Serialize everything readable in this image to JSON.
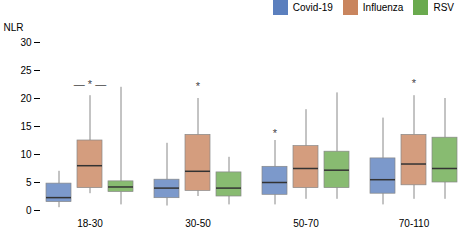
{
  "chart_data": {
    "type": "box",
    "categories": [
      "18-30",
      "30-50",
      "50-70",
      "70-110"
    ],
    "ylabel": "NLR",
    "ylim": [
      0,
      30
    ],
    "yticks": [
      0,
      5,
      10,
      15,
      20,
      25,
      30
    ],
    "legend": "upper right",
    "series": [
      {
        "name": "Covid-19",
        "color": "#5b7fbe",
        "values": [
          {
            "whislo": 0.5,
            "q1": 1.5,
            "med": 2.3,
            "q3": 4.8,
            "whishi": 7.0
          },
          {
            "whislo": 0.8,
            "q1": 2.2,
            "med": 4.0,
            "q3": 5.5,
            "whishi": 12.0
          },
          {
            "whislo": 1.0,
            "q1": 2.8,
            "med": 5.0,
            "q3": 7.8,
            "whishi": 12.5
          },
          {
            "whislo": 1.0,
            "q1": 3.0,
            "med": 5.5,
            "q3": 9.3,
            "whishi": 16.5
          }
        ]
      },
      {
        "name": "Influenza",
        "color": "#c9855e",
        "values": [
          {
            "whislo": 3.0,
            "q1": 4.0,
            "med": 8.0,
            "q3": 12.5,
            "whishi": 20.5
          },
          {
            "whislo": 2.5,
            "q1": 3.5,
            "med": 7.0,
            "q3": 13.5,
            "whishi": 20.0
          },
          {
            "whislo": 2.0,
            "q1": 4.0,
            "med": 7.5,
            "q3": 11.5,
            "whishi": 18.0
          },
          {
            "whislo": 2.0,
            "q1": 4.5,
            "med": 8.3,
            "q3": 13.5,
            "whishi": 20.5
          }
        ]
      },
      {
        "name": "RSV",
        "color": "#6aaa4e",
        "values": [
          {
            "whislo": 1.0,
            "q1": 3.3,
            "med": 4.2,
            "q3": 5.2,
            "whishi": 22.0
          },
          {
            "whislo": 1.0,
            "q1": 2.5,
            "med": 4.0,
            "q3": 6.8,
            "whishi": 9.5
          },
          {
            "whislo": 2.0,
            "q1": 4.0,
            "med": 7.2,
            "q3": 10.5,
            "whishi": 21.0
          },
          {
            "whislo": 2.0,
            "q1": 5.0,
            "med": 7.5,
            "q3": 13.0,
            "whishi": 20.0
          }
        ]
      }
    ],
    "annotations": [
      {
        "text": "— * —",
        "category": "18-30",
        "series": "Influenza",
        "y": 21.8
      },
      {
        "text": "*",
        "category": "30-50",
        "series": "Influenza",
        "y": 21.5
      },
      {
        "text": "*",
        "category": "50-70",
        "series": "Covid-19",
        "y": 13.2
      },
      {
        "text": "*",
        "category": "70-110",
        "series": "Influenza",
        "y": 22.0
      }
    ]
  }
}
